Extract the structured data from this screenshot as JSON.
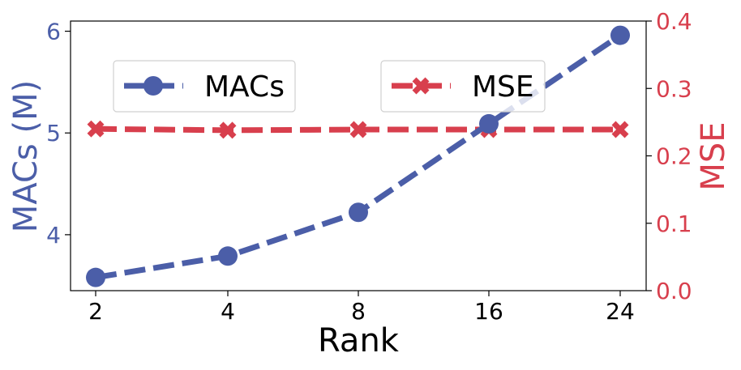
{
  "chart_data": {
    "type": "line",
    "xlabel": "Rank",
    "categories": [
      "2",
      "4",
      "8",
      "16",
      "24"
    ],
    "series": [
      {
        "name": "MACs",
        "axis": "left",
        "color": "#4b5ea8",
        "marker": "circle",
        "linestyle": "dashed",
        "values": [
          3.58,
          3.79,
          4.22,
          5.09,
          5.96
        ]
      },
      {
        "name": "MSE",
        "axis": "right",
        "color": "#d83f4d",
        "marker": "x",
        "linestyle": "dashed",
        "values": [
          0.24,
          0.238,
          0.239,
          0.239,
          0.239
        ]
      }
    ],
    "y_left": {
      "label": "MACs (M)",
      "ylim": [
        3.45,
        6.1
      ],
      "ticks": [
        4,
        5,
        6
      ],
      "tick_labels": [
        "4",
        "5",
        "6"
      ],
      "color": "#4b5ea8"
    },
    "y_right": {
      "label": "MSE",
      "ylim": [
        0.0,
        0.4
      ],
      "ticks": [
        0.0,
        0.1,
        0.2,
        0.3,
        0.4
      ],
      "tick_labels": [
        "0.0",
        "0.1",
        "0.2",
        "0.3",
        "0.4"
      ],
      "color": "#d83f4d"
    },
    "grid": false,
    "legend": "upper, split into two boxes"
  }
}
